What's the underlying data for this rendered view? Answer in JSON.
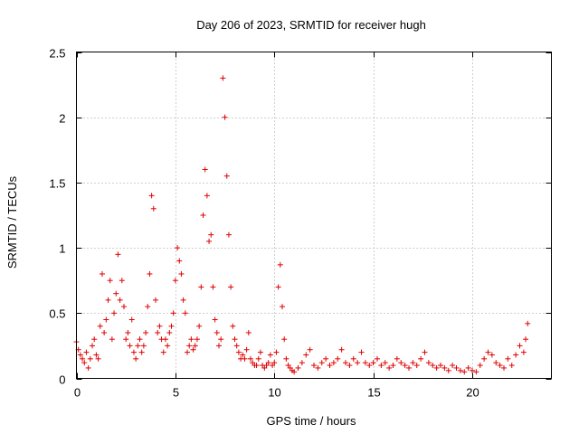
{
  "chart_data": {
    "type": "scatter",
    "title": "Day 206 of 2023, SRMTID for receiver hugh",
    "xlabel": "GPS time / hours",
    "ylabel": "SRMTID / TECUs",
    "xlim": [
      0,
      24
    ],
    "ylim": [
      0,
      2.5
    ],
    "xticks": [
      0,
      5,
      10,
      15,
      20
    ],
    "xtick_labels": [
      "0",
      "5",
      "10",
      "15",
      "20"
    ],
    "yticks": [
      0,
      0.5,
      1,
      1.5,
      2,
      2.5
    ],
    "ytick_labels": [
      "0",
      "0.5",
      "1",
      "1.5",
      "2",
      "2.5"
    ],
    "grid": true,
    "marker": "+",
    "color": "#e00000",
    "series": [
      {
        "name": "SRMTID",
        "x": [
          0.0,
          0.1,
          0.2,
          0.3,
          0.4,
          0.5,
          0.6,
          0.7,
          0.8,
          0.9,
          1.0,
          1.1,
          1.2,
          1.3,
          1.4,
          1.5,
          1.6,
          1.7,
          1.8,
          1.9,
          2.0,
          2.1,
          2.2,
          2.3,
          2.4,
          2.5,
          2.6,
          2.7,
          2.8,
          2.9,
          3.0,
          3.1,
          3.2,
          3.3,
          3.4,
          3.5,
          3.6,
          3.7,
          3.8,
          3.9,
          4.0,
          4.1,
          4.2,
          4.3,
          4.4,
          4.5,
          4.6,
          4.7,
          4.8,
          4.9,
          5.0,
          5.1,
          5.2,
          5.3,
          5.4,
          5.5,
          5.6,
          5.7,
          5.8,
          5.9,
          6.0,
          6.1,
          6.2,
          6.3,
          6.4,
          6.5,
          6.6,
          6.7,
          6.8,
          6.9,
          7.0,
          7.1,
          7.2,
          7.3,
          7.4,
          7.5,
          7.6,
          7.7,
          7.8,
          7.9,
          8.0,
          8.1,
          8.2,
          8.3,
          8.4,
          8.5,
          8.6,
          8.7,
          8.8,
          8.9,
          9.0,
          9.1,
          9.2,
          9.3,
          9.4,
          9.5,
          9.6,
          9.7,
          9.8,
          9.9,
          10.0,
          10.1,
          10.2,
          10.3,
          10.4,
          10.5,
          10.6,
          10.7,
          10.8,
          10.9,
          11.0,
          11.2,
          11.4,
          11.6,
          11.8,
          12.0,
          12.2,
          12.4,
          12.6,
          12.8,
          13.0,
          13.2,
          13.4,
          13.6,
          13.8,
          14.0,
          14.2,
          14.4,
          14.6,
          14.8,
          15.0,
          15.2,
          15.4,
          15.6,
          15.8,
          16.0,
          16.2,
          16.4,
          16.6,
          16.8,
          17.0,
          17.2,
          17.4,
          17.6,
          17.8,
          18.0,
          18.2,
          18.4,
          18.6,
          18.8,
          19.0,
          19.2,
          19.4,
          19.6,
          19.8,
          20.0,
          20.2,
          20.4,
          20.6,
          20.8,
          21.0,
          21.2,
          21.4,
          21.6,
          21.8,
          22.0,
          22.2,
          22.4,
          22.6,
          22.7,
          22.8
        ],
        "y": [
          0.28,
          0.22,
          0.18,
          0.15,
          0.12,
          0.2,
          0.08,
          0.15,
          0.25,
          0.3,
          0.18,
          0.15,
          0.4,
          0.8,
          0.35,
          0.45,
          0.6,
          0.75,
          0.3,
          0.5,
          0.65,
          0.95,
          0.6,
          0.75,
          0.55,
          0.3,
          0.35,
          0.25,
          0.45,
          0.2,
          0.15,
          0.25,
          0.3,
          0.2,
          0.25,
          0.35,
          0.55,
          0.8,
          1.4,
          1.3,
          0.6,
          0.35,
          0.4,
          0.3,
          0.2,
          0.3,
          0.25,
          0.35,
          0.4,
          0.5,
          0.75,
          1.0,
          0.9,
          0.8,
          0.6,
          0.5,
          0.2,
          0.25,
          0.3,
          0.22,
          0.25,
          0.3,
          0.4,
          0.7,
          1.25,
          1.6,
          1.4,
          1.05,
          1.1,
          0.7,
          0.45,
          0.35,
          0.25,
          0.3,
          2.3,
          2.0,
          1.55,
          1.1,
          0.7,
          0.4,
          0.3,
          0.25,
          0.2,
          0.15,
          0.18,
          0.15,
          0.22,
          0.35,
          0.15,
          0.12,
          0.1,
          0.1,
          0.15,
          0.2,
          0.1,
          0.08,
          0.1,
          0.12,
          0.18,
          0.1,
          0.12,
          0.2,
          0.7,
          0.87,
          0.55,
          0.3,
          0.15,
          0.1,
          0.08,
          0.06,
          0.05,
          0.08,
          0.12,
          0.18,
          0.22,
          0.1,
          0.08,
          0.12,
          0.15,
          0.1,
          0.12,
          0.15,
          0.22,
          0.12,
          0.1,
          0.15,
          0.12,
          0.2,
          0.12,
          0.1,
          0.12,
          0.15,
          0.1,
          0.12,
          0.08,
          0.1,
          0.15,
          0.12,
          0.1,
          0.08,
          0.12,
          0.1,
          0.15,
          0.2,
          0.12,
          0.1,
          0.08,
          0.1,
          0.08,
          0.06,
          0.1,
          0.08,
          0.06,
          0.05,
          0.08,
          0.06,
          0.05,
          0.1,
          0.15,
          0.2,
          0.18,
          0.12,
          0.1,
          0.08,
          0.15,
          0.1,
          0.18,
          0.25,
          0.2,
          0.3,
          0.42
        ]
      }
    ]
  }
}
